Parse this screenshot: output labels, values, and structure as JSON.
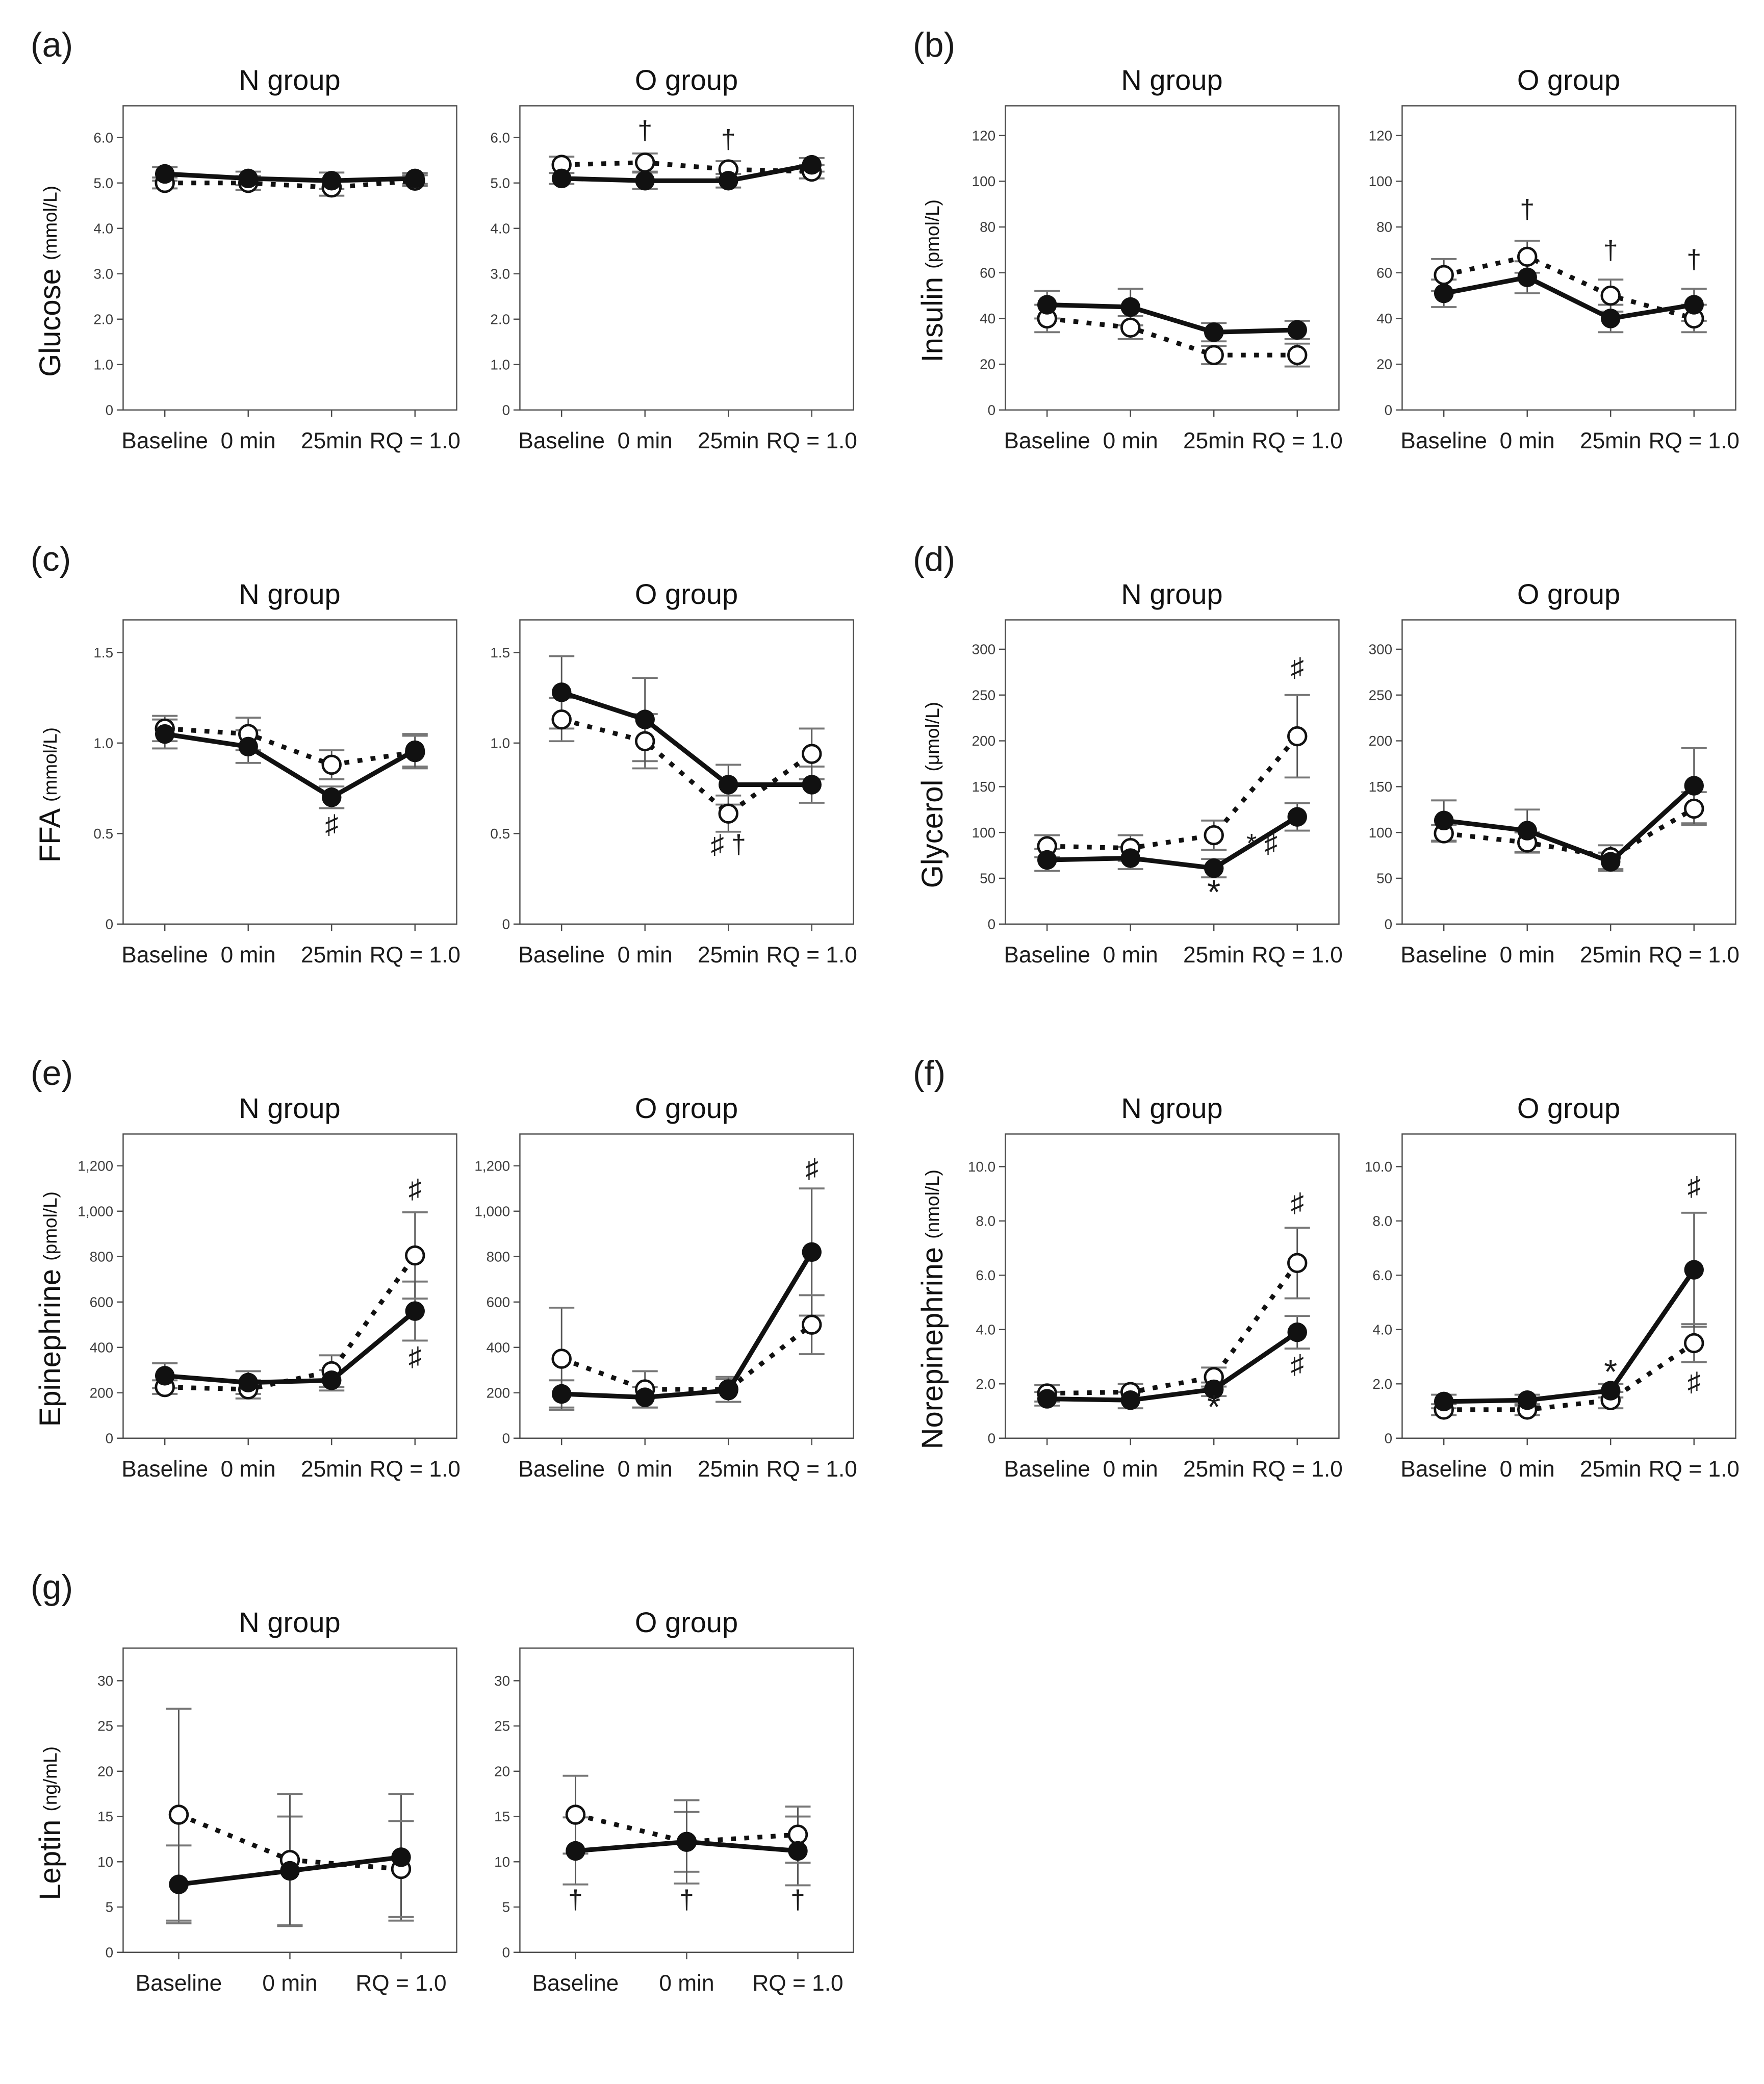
{
  "figure": {
    "background": "#ffffff",
    "series_styles": {
      "filled": {
        "marker": "filled-circle",
        "line": "solid",
        "color": "#111111"
      },
      "open": {
        "marker": "open-circle",
        "line": "dotted",
        "color": "#111111"
      }
    }
  },
  "chart_data": [
    {
      "id": "a",
      "type": "line",
      "panel_label": "(a)",
      "ylabel": "Glucose",
      "yunit": "(mmol/L)",
      "ymax": 6.7,
      "yticks": [
        0,
        1,
        2,
        3,
        4,
        5,
        6
      ],
      "ytick_labels": [
        "0",
        "1.0",
        "2.0",
        "3.0",
        "4.0",
        "5.0",
        "6.0"
      ],
      "charts": [
        {
          "title": "N group",
          "categories": [
            "Baseline",
            "0 min",
            "25min",
            "RQ = 1.0"
          ],
          "series": [
            {
              "name": "filled",
              "values": [
                5.2,
                5.1,
                5.05,
                5.1
              ],
              "errors": [
                0.15,
                0.15,
                0.18,
                0.12
              ]
            },
            {
              "name": "open",
              "values": [
                5.0,
                5.0,
                4.9,
                5.05
              ],
              "errors": [
                0.12,
                0.15,
                0.18,
                0.12
              ]
            }
          ],
          "annotations": []
        },
        {
          "title": "O group",
          "categories": [
            "Baseline",
            "0 min",
            "25min",
            "RQ = 1.0"
          ],
          "series": [
            {
              "name": "filled",
              "values": [
                5.1,
                5.05,
                5.05,
                5.4
              ],
              "errors": [
                0.12,
                0.18,
                0.15,
                0.15
              ]
            },
            {
              "name": "open",
              "values": [
                5.4,
                5.45,
                5.3,
                5.25
              ],
              "errors": [
                0.18,
                0.2,
                0.18,
                0.15
              ]
            }
          ],
          "annotations": [
            {
              "text": "†",
              "cat": 1,
              "y": 6.12
            },
            {
              "text": "†",
              "cat": 2,
              "y": 5.92
            }
          ]
        }
      ]
    },
    {
      "id": "b",
      "type": "line",
      "panel_label": "(b)",
      "ylabel": "Insulin",
      "yunit": "(pmol/L)",
      "ymax": 133,
      "yticks": [
        0,
        20,
        40,
        60,
        80,
        100,
        120
      ],
      "ytick_labels": [
        "0",
        "20",
        "40",
        "60",
        "80",
        "100",
        "120"
      ],
      "charts": [
        {
          "title": "N group",
          "categories": [
            "Baseline",
            "0 min",
            "25min",
            "RQ = 1.0"
          ],
          "series": [
            {
              "name": "filled",
              "values": [
                46,
                45,
                34,
                35
              ],
              "errors": [
                6,
                8,
                4,
                4
              ]
            },
            {
              "name": "open",
              "values": [
                40,
                36,
                24,
                24
              ],
              "errors": [
                6,
                5,
                4,
                5
              ]
            }
          ],
          "annotations": []
        },
        {
          "title": "O group",
          "categories": [
            "Baseline",
            "0 min",
            "25min",
            "RQ = 1.0"
          ],
          "series": [
            {
              "name": "filled",
              "values": [
                51,
                58,
                40,
                46
              ],
              "errors": [
                6,
                7,
                6,
                7
              ]
            },
            {
              "name": "open",
              "values": [
                59,
                67,
                50,
                40
              ],
              "errors": [
                7,
                7,
                7,
                6
              ]
            }
          ],
          "annotations": [
            {
              "text": "†",
              "cat": 1,
              "y": 87
            },
            {
              "text": "†",
              "cat": 2,
              "y": 69
            },
            {
              "text": "†",
              "cat": 3,
              "y": 65
            }
          ]
        }
      ]
    },
    {
      "id": "c",
      "type": "line",
      "panel_label": "(c)",
      "ylabel": "FFA",
      "yunit": "(mmol/L)",
      "ymax": 1.68,
      "yticks": [
        0,
        0.5,
        1.0,
        1.5
      ],
      "ytick_labels": [
        "0",
        "0.5",
        "1.0",
        "1.5"
      ],
      "charts": [
        {
          "title": "N group",
          "categories": [
            "Baseline",
            "0 min",
            "25min",
            "RQ = 1.0"
          ],
          "series": [
            {
              "name": "filled",
              "values": [
                1.05,
                0.98,
                0.7,
                0.96
              ],
              "errors": [
                0.08,
                0.09,
                0.06,
                0.09
              ]
            },
            {
              "name": "open",
              "values": [
                1.08,
                1.05,
                0.88,
                0.95
              ],
              "errors": [
                0.07,
                0.09,
                0.08,
                0.09
              ]
            }
          ],
          "annotations": [
            {
              "text": "♯",
              "cat": 2,
              "y": 0.54
            }
          ]
        },
        {
          "title": "O group",
          "categories": [
            "Baseline",
            "0 min",
            "25min",
            "RQ = 1.0"
          ],
          "series": [
            {
              "name": "filled",
              "values": [
                1.28,
                1.13,
                0.77,
                0.77
              ],
              "errors": [
                0.2,
                0.23,
                0.11,
                0.1
              ]
            },
            {
              "name": "open",
              "values": [
                1.13,
                1.01,
                0.61,
                0.94
              ],
              "errors": [
                0.12,
                0.15,
                0.1,
                0.14
              ]
            }
          ],
          "annotations": [
            {
              "text": "♯ †",
              "cat": 2,
              "y": 0.43
            }
          ]
        }
      ]
    },
    {
      "id": "d",
      "type": "line",
      "panel_label": "(d)",
      "ylabel": "Glycerol",
      "yunit": "(μmol/L)",
      "ymax": 332,
      "yticks": [
        0,
        50,
        100,
        150,
        200,
        250,
        300
      ],
      "ytick_labels": [
        "0",
        "50",
        "100",
        "150",
        "200",
        "250",
        "300"
      ],
      "charts": [
        {
          "title": "N group",
          "categories": [
            "Baseline",
            "0 min",
            "25min",
            "RQ = 1.0"
          ],
          "series": [
            {
              "name": "filled",
              "values": [
                70,
                72,
                61,
                117
              ],
              "errors": [
                12,
                12,
                10,
                15
              ]
            },
            {
              "name": "open",
              "values": [
                85,
                83,
                97,
                205
              ],
              "errors": [
                12,
                14,
                16,
                45
              ]
            }
          ],
          "annotations": [
            {
              "text": "*",
              "cat": 2,
              "y": 32,
              "size": 70
            },
            {
              "text": "♯",
              "cat": 3,
              "y": 278
            },
            {
              "text": "* ♯",
              "cat": 3,
              "y": 86,
              "dx": -72
            }
          ]
        },
        {
          "title": "O group",
          "categories": [
            "Baseline",
            "0 min",
            "25min",
            "RQ = 1.0"
          ],
          "series": [
            {
              "name": "filled",
              "values": [
                113,
                102,
                68,
                151
              ],
              "errors": [
                22,
                23,
                10,
                41
              ]
            },
            {
              "name": "open",
              "values": [
                99,
                89,
                73,
                126
              ],
              "errors": [
                9,
                11,
                13,
                18
              ]
            }
          ],
          "annotations": []
        }
      ]
    },
    {
      "id": "e",
      "type": "line",
      "panel_label": "(e)",
      "ylabel": "Epinephrine",
      "yunit": "(pmol/L)",
      "ymax": 1340,
      "yticks": [
        0,
        200,
        400,
        600,
        800,
        1000,
        1200
      ],
      "ytick_labels": [
        "0",
        "200",
        "400",
        "600",
        "800",
        "1,000",
        "1,200"
      ],
      "charts": [
        {
          "title": "N group",
          "categories": [
            "Baseline",
            "0 min",
            "25min",
            "RQ = 1.0"
          ],
          "series": [
            {
              "name": "filled",
              "values": [
                275,
                245,
                255,
                560
              ],
              "errors": [
                55,
                50,
                45,
                130
              ]
            },
            {
              "name": "open",
              "values": [
                225,
                215,
                295,
                805
              ],
              "errors": [
                30,
                40,
                70,
                190
              ]
            }
          ],
          "annotations": [
            {
              "text": "♯",
              "cat": 3,
              "y": 1090
            },
            {
              "text": "♯",
              "cat": 3,
              "y": 350
            }
          ]
        },
        {
          "title": "O group",
          "categories": [
            "Baseline",
            "0 min",
            "25min",
            "RQ = 1.0"
          ],
          "series": [
            {
              "name": "filled",
              "values": [
                195,
                180,
                210,
                820
              ],
              "errors": [
                60,
                45,
                50,
                280
              ]
            },
            {
              "name": "open",
              "values": [
                350,
                215,
                215,
                500
              ],
              "errors": [
                225,
                80,
                55,
                130
              ]
            }
          ],
          "annotations": [
            {
              "text": "♯",
              "cat": 3,
              "y": 1180
            }
          ]
        }
      ]
    },
    {
      "id": "f",
      "type": "line",
      "panel_label": "(f)",
      "ylabel": "Norepinephrine",
      "yunit": "(nmol/L)",
      "ymax": 11.2,
      "yticks": [
        0,
        2,
        4,
        6,
        8,
        10
      ],
      "ytick_labels": [
        "0",
        "2.0",
        "4.0",
        "6.0",
        "8.0",
        "10.0"
      ],
      "charts": [
        {
          "title": "N group",
          "categories": [
            "Baseline",
            "0 min",
            "25min",
            "RQ = 1.0"
          ],
          "series": [
            {
              "name": "filled",
              "values": [
                1.45,
                1.4,
                1.8,
                3.9
              ],
              "errors": [
                0.25,
                0.3,
                0.25,
                0.6
              ]
            },
            {
              "name": "open",
              "values": [
                1.65,
                1.7,
                2.25,
                6.45
              ],
              "errors": [
                0.3,
                0.3,
                0.35,
                1.3
              ]
            }
          ],
          "annotations": [
            {
              "text": "*",
              "cat": 2,
              "y": 1.05,
              "size": 70
            },
            {
              "text": "♯",
              "cat": 3,
              "y": 8.6
            },
            {
              "text": "♯",
              "cat": 3,
              "y": 2.65
            }
          ]
        },
        {
          "title": "O group",
          "categories": [
            "Baseline",
            "0 min",
            "25min",
            "RQ = 1.0"
          ],
          "series": [
            {
              "name": "filled",
              "values": [
                1.35,
                1.4,
                1.75,
                6.2
              ],
              "errors": [
                0.25,
                0.2,
                0.25,
                2.1
              ]
            },
            {
              "name": "open",
              "values": [
                1.05,
                1.05,
                1.4,
                3.5
              ],
              "errors": [
                0.2,
                0.2,
                0.3,
                0.7
              ]
            }
          ],
          "annotations": [
            {
              "text": "*",
              "cat": 2,
              "y": 2.35,
              "size": 70
            },
            {
              "text": "♯",
              "cat": 3,
              "y": 9.2
            },
            {
              "text": "♯",
              "cat": 3,
              "y": 2.0
            }
          ]
        }
      ]
    },
    {
      "id": "g",
      "type": "line",
      "panel_label": "(g)",
      "ylabel": "Leptin",
      "yunit": "(ng/mL)",
      "ymax": 33.6,
      "yticks": [
        0,
        5,
        10,
        15,
        20,
        25,
        30
      ],
      "ytick_labels": [
        "0",
        "5",
        "10",
        "15",
        "20",
        "25",
        "30"
      ],
      "charts": [
        {
          "title": "N group",
          "categories": [
            "Baseline",
            "0 min",
            "RQ = 1.0"
          ],
          "series": [
            {
              "name": "filled",
              "values": [
                7.5,
                9.0,
                10.5
              ],
              "errors": [
                4.3,
                6.0,
                7.0
              ]
            },
            {
              "name": "open",
              "values": [
                15.2,
                10.2,
                9.2
              ],
              "errors": [
                11.7,
                7.3,
                5.3
              ]
            }
          ],
          "annotations": []
        },
        {
          "title": "O group",
          "categories": [
            "Baseline",
            "0 min",
            "RQ = 1.0"
          ],
          "series": [
            {
              "name": "filled",
              "values": [
                11.2,
                12.2,
                11.2
              ],
              "errors": [
                3.7,
                3.3,
                3.8
              ]
            },
            {
              "name": "open",
              "values": [
                15.2,
                12.2,
                13.0
              ],
              "errors": [
                4.3,
                4.6,
                3.1
              ]
            }
          ],
          "annotations": [
            {
              "text": "†",
              "cat": 0,
              "y": 5.6
            },
            {
              "text": "†",
              "cat": 1,
              "y": 5.6
            },
            {
              "text": "†",
              "cat": 2,
              "y": 5.6
            }
          ]
        }
      ]
    }
  ]
}
